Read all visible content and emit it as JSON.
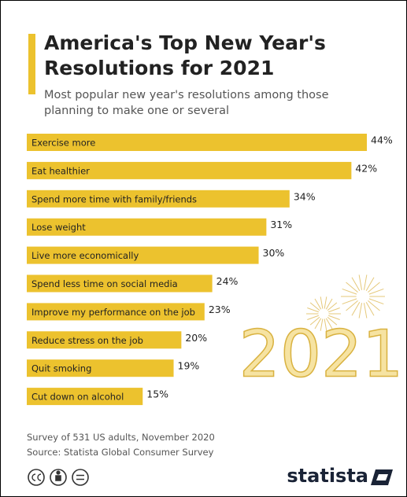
{
  "chart_data": {
    "type": "bar",
    "orientation": "horizontal",
    "title": "America's Top New Year's Resolutions for 2021",
    "subtitle": "Most popular new year's resolutions among those planning to make one or several",
    "categories": [
      "Exercise more",
      "Eat healthier",
      "Spend more time with family/friends",
      "Lose weight",
      "Live more economically",
      "Spend less time on social media",
      "Improve my performance on the job",
      "Reduce stress on the job",
      "Quit smoking",
      "Cut down on alcohol"
    ],
    "values": [
      44,
      42,
      34,
      31,
      30,
      24,
      23,
      20,
      19,
      15
    ],
    "value_labels": [
      "44%",
      "42%",
      "34%",
      "31%",
      "30%",
      "24%",
      "23%",
      "20%",
      "19%",
      "15%"
    ],
    "color": "#ecc22e",
    "decoration": "2021",
    "notes": [
      "Survey of 531 US adults, November 2020",
      "Source: Statista Global Consumer Survey"
    ],
    "logo": "statista"
  }
}
